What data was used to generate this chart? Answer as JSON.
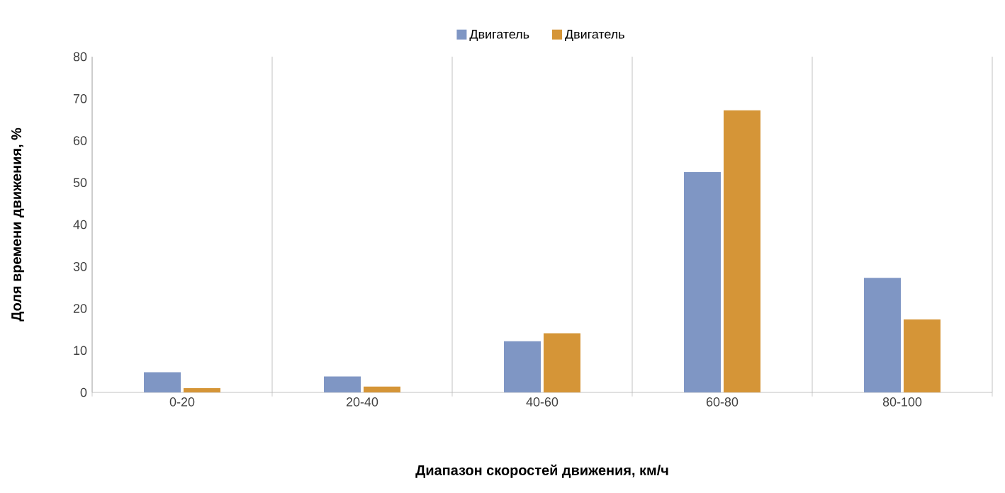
{
  "chart_data": {
    "type": "bar",
    "xlabel": "Диапазон скоростей движения, км/ч",
    "ylabel": "Доля времени движения, %",
    "categories": [
      "0-20",
      "20-40",
      "40-60",
      "60-80",
      "80-100"
    ],
    "series": [
      {
        "name": "Двигатель",
        "color": "#7f96c4",
        "values": [
          4.8,
          3.8,
          12.2,
          52.5,
          27.3
        ]
      },
      {
        "name": "Двигатель",
        "color": "#d59537",
        "values": [
          1.0,
          1.4,
          14.1,
          67.2,
          17.4
        ]
      }
    ],
    "ylim": [
      0,
      80
    ],
    "yticks": [
      0,
      10,
      20,
      30,
      40,
      50,
      60,
      70,
      80
    ],
    "grid": "x",
    "legend": "top"
  }
}
